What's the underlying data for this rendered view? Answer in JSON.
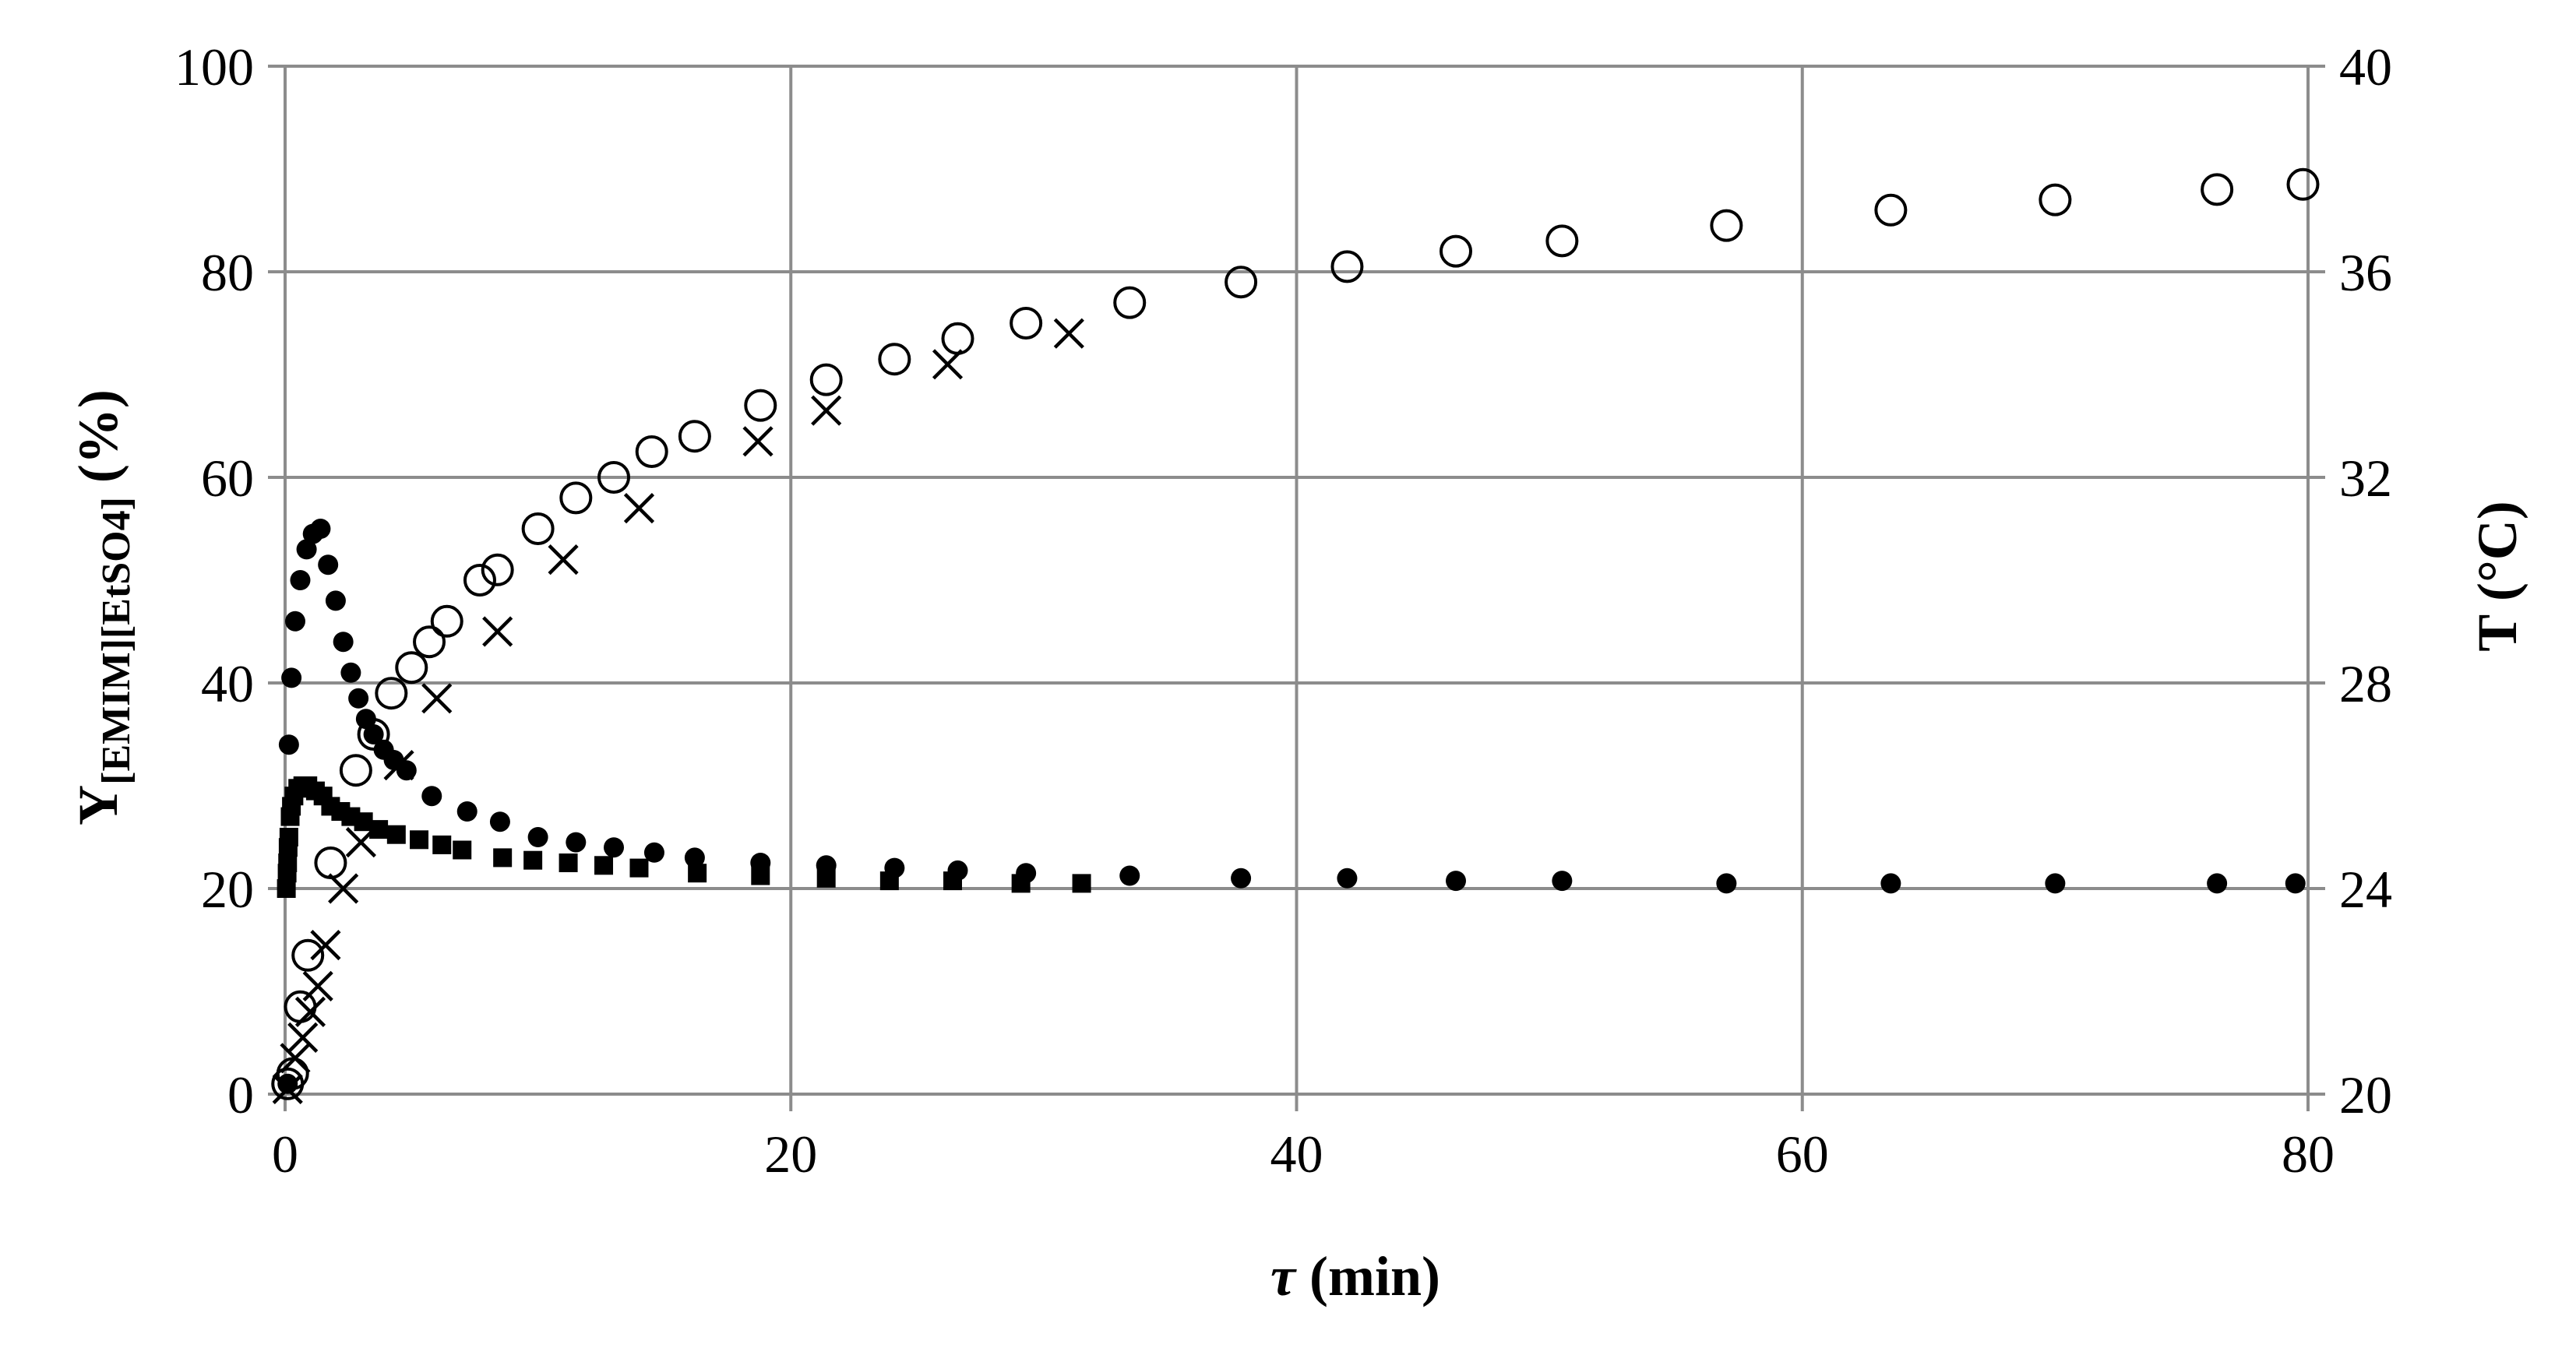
{
  "chart_data": {
    "type": "scatter",
    "title": "",
    "xlabel": "τ (min)",
    "ylabel": {
      "main": "Y",
      "sub": "[EMIM][EtSO4]",
      "suffix": " (%)"
    },
    "y2label": "T (°C)",
    "xlim": [
      0,
      80
    ],
    "ylim": [
      0,
      100
    ],
    "y2lim": [
      20,
      40
    ],
    "xticks": [
      "0",
      "20",
      "40",
      "60",
      "80"
    ],
    "yticks": [
      "0",
      "20",
      "40",
      "60",
      "80",
      "100"
    ],
    "y2ticks": [
      "20",
      "24",
      "28",
      "32",
      "36",
      "40"
    ],
    "grid": true,
    "legend": "none",
    "series": [
      {
        "marker": "open-circle",
        "axis": "left",
        "x": [
          0.1,
          0.3,
          0.6,
          0.9,
          1.8,
          2.8,
          3.5,
          4.2,
          5.0,
          5.7,
          6.4,
          7.7,
          8.4,
          10.0,
          11.5,
          13.0,
          14.5,
          16.2,
          18.8,
          21.4,
          24.1,
          26.6,
          29.3,
          33.4,
          37.8,
          42.0,
          46.3,
          50.5,
          57.0,
          63.5,
          70.0,
          76.4,
          79.8
        ],
        "y": [
          1,
          2,
          8.5,
          13.5,
          22.5,
          31.5,
          35,
          39,
          41.5,
          44,
          46,
          50,
          51,
          55,
          58,
          60,
          62.5,
          64,
          67,
          69.5,
          71.5,
          73.5,
          75,
          77,
          79,
          80.5,
          82,
          83,
          84.5,
          86,
          87,
          88,
          88.5
        ]
      },
      {
        "marker": "cross",
        "axis": "left",
        "x": [
          0.1,
          0.4,
          0.7,
          1.0,
          1.3,
          1.6,
          2.3,
          3.0,
          4.5,
          6.0,
          8.4,
          11.0,
          14.0,
          18.7,
          21.4,
          26.2,
          31.0
        ],
        "y": [
          0.5,
          3.5,
          5.5,
          8,
          10.5,
          14.5,
          20,
          24.5,
          32,
          38.5,
          45,
          52,
          57,
          63.5,
          66.5,
          71,
          74
        ]
      },
      {
        "marker": "filled-circle",
        "axis": "right",
        "x": [
          0.1,
          0.15,
          0.25,
          0.4,
          0.6,
          0.85,
          1.1,
          1.4,
          1.7,
          2.0,
          2.3,
          2.6,
          2.9,
          3.2,
          3.5,
          3.9,
          4.3,
          4.8,
          5.8,
          7.2,
          8.5,
          10.0,
          11.5,
          13.0,
          14.6,
          16.2,
          18.8,
          21.4,
          24.1,
          26.6,
          29.3,
          33.4,
          37.8,
          42.0,
          46.3,
          50.5,
          57.0,
          63.5,
          70.0,
          76.4,
          79.5
        ],
        "y": [
          20.2,
          26.8,
          28.1,
          29.2,
          30.0,
          30.6,
          30.9,
          31.0,
          30.3,
          29.6,
          28.8,
          28.2,
          27.7,
          27.3,
          27.0,
          26.7,
          26.5,
          26.3,
          25.8,
          25.5,
          25.3,
          25.0,
          24.9,
          24.8,
          24.7,
          24.6,
          24.5,
          24.45,
          24.4,
          24.35,
          24.3,
          24.25,
          24.2,
          24.2,
          24.15,
          24.15,
          24.1,
          24.1,
          24.1,
          24.1,
          24.1
        ]
      },
      {
        "marker": "filled-square",
        "axis": "right",
        "x": [
          0.05,
          0.08,
          0.1,
          0.12,
          0.15,
          0.2,
          0.25,
          0.35,
          0.5,
          0.7,
          0.9,
          1.2,
          1.5,
          1.8,
          2.2,
          2.6,
          3.1,
          3.7,
          4.4,
          5.3,
          6.2,
          7.0,
          8.6,
          9.8,
          11.2,
          12.6,
          14.0,
          16.3,
          18.8,
          21.4,
          23.9,
          26.4,
          29.1,
          31.5
        ],
        "y": [
          24.0,
          24.3,
          24.5,
          24.8,
          25.0,
          25.4,
          25.6,
          25.8,
          25.95,
          26.0,
          26.0,
          25.9,
          25.8,
          25.6,
          25.5,
          25.4,
          25.3,
          25.15,
          25.05,
          24.95,
          24.85,
          24.75,
          24.6,
          24.55,
          24.5,
          24.45,
          24.4,
          24.3,
          24.25,
          24.2,
          24.15,
          24.15,
          24.1,
          24.1
        ]
      }
    ]
  }
}
